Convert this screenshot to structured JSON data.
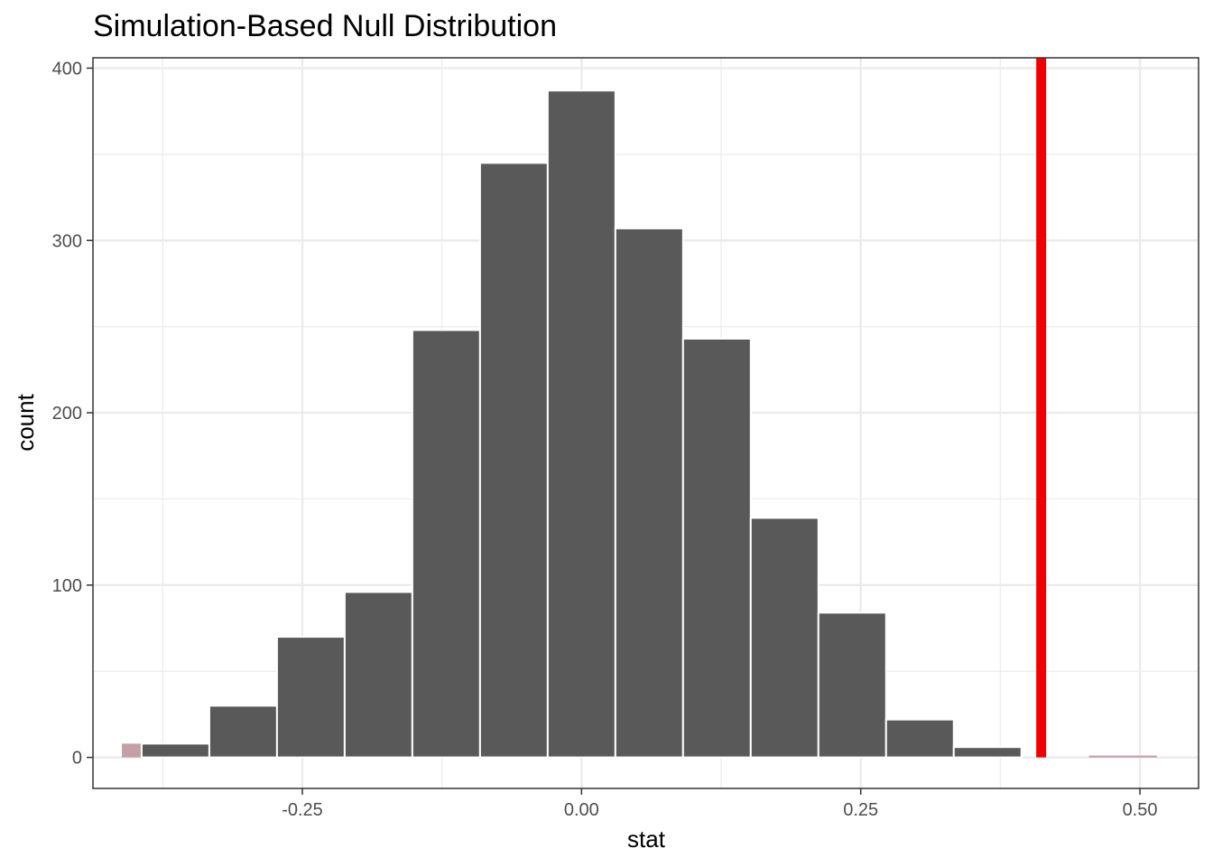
{
  "chart_data": {
    "type": "bar",
    "title": "Simulation-Based Null Distribution",
    "xlabel": "stat",
    "ylabel": "count",
    "xlim": [
      -0.4375,
      0.5525
    ],
    "ylim": [
      -18,
      406
    ],
    "x_ticks": [
      -0.25,
      0.0,
      0.25,
      0.5
    ],
    "x_tick_labels": [
      "-0.25",
      "0.00",
      "0.25",
      "0.50"
    ],
    "y_ticks": [
      0,
      100,
      200,
      300,
      400
    ],
    "y_tick_labels": [
      "0",
      "100",
      "200",
      "300",
      "400"
    ],
    "grid": true,
    "bin_width": 0.0606,
    "bins": [
      {
        "x": -0.3636,
        "count": 8
      },
      {
        "x": -0.303,
        "count": 30
      },
      {
        "x": -0.2424,
        "count": 70
      },
      {
        "x": -0.1818,
        "count": 96
      },
      {
        "x": -0.1212,
        "count": 248
      },
      {
        "x": -0.0606,
        "count": 345
      },
      {
        "x": 0.0,
        "count": 387
      },
      {
        "x": 0.0606,
        "count": 307
      },
      {
        "x": 0.1212,
        "count": 243
      },
      {
        "x": 0.1818,
        "count": 139
      },
      {
        "x": 0.2424,
        "count": 84
      },
      {
        "x": 0.303,
        "count": 22
      },
      {
        "x": 0.3636,
        "count": 6
      },
      {
        "x": 0.4242,
        "count": 0
      },
      {
        "x": 0.4848,
        "count": 1
      }
    ],
    "shaded_regions": [
      {
        "from": -0.4116,
        "to": -0.3636,
        "count": 8,
        "color": "#c4a0a6"
      },
      {
        "from": 0.4545,
        "to": 0.5151,
        "count": 1,
        "color": "#c4a0a6"
      }
    ],
    "observed_stat": 0.4116,
    "colors": {
      "bar_fill": "#595959",
      "bar_stroke": "#ffffff",
      "shade": "#c4a0a6",
      "observed_line": "#ee0000",
      "grid": "#ebebeb",
      "panel_border": "#333333"
    }
  }
}
